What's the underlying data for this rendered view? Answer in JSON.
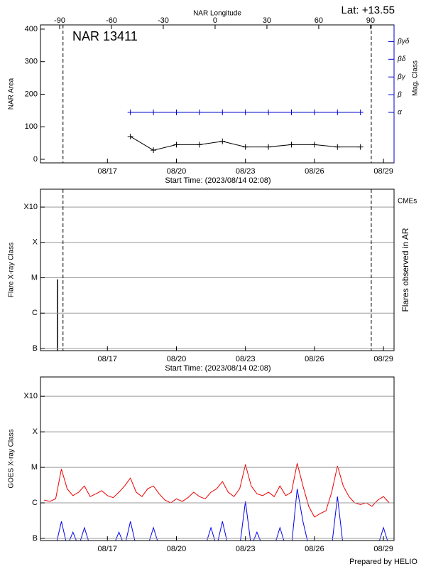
{
  "chart_data": [
    {
      "type": "line",
      "title": "NAR 13411",
      "latitude": "Lat: +13.55",
      "x2label": "NAR Longitude",
      "ylabel": "NAR Area",
      "y2label": "Mag. Class",
      "xlabel": "Start Time: (2023/08/14 02:08)",
      "xlim": [
        14.09,
        29.46
      ],
      "xticks": [
        {
          "value": 17,
          "label": "08/17"
        },
        {
          "value": 20,
          "label": "08/20"
        },
        {
          "value": 23,
          "label": "08/23"
        },
        {
          "value": 26,
          "label": "08/26"
        },
        {
          "value": 29,
          "label": "08/29"
        }
      ],
      "x2lim": [
        -101.1,
        103.6
      ],
      "x2ticks": [
        -90,
        -60,
        -30,
        0,
        30,
        60,
        90
      ],
      "ylim": [
        -11,
        413
      ],
      "yticks": [
        0,
        100,
        200,
        300,
        400
      ],
      "y2lim": [
        -0.85,
        6.94
      ],
      "y2ticks": [
        {
          "value": 2,
          "label": "α"
        },
        {
          "value": 3,
          "label": "β"
        },
        {
          "value": 4,
          "label": "βγ"
        },
        {
          "value": 5,
          "label": "βδ"
        },
        {
          "value": 6,
          "label": "βγδ"
        }
      ],
      "vlines": [
        15.07,
        28.47
      ],
      "x": [
        18,
        19,
        20,
        21,
        22,
        23,
        24,
        25,
        26,
        27,
        28
      ],
      "series": [
        {
          "color": "#000000",
          "values": [
            70,
            28,
            45,
            45,
            55,
            38,
            38,
            45,
            45,
            38,
            38
          ]
        },
        {
          "color": "#0000cc",
          "axis": "y2",
          "values": [
            2,
            2,
            2,
            2,
            2,
            2,
            2,
            2,
            2,
            2,
            2
          ]
        }
      ]
    },
    {
      "type": "stem",
      "ylabel": "Flare X-ray Class",
      "y2label": "Flares observed in AR",
      "legend_label": "CMEs",
      "legend_color": "#dd0000",
      "xlabel": "Start Time: (2023/08/14 02:08)",
      "log_scale": true,
      "grid": true,
      "xlim": [
        14.09,
        29.46
      ],
      "xticks": [
        {
          "value": 17,
          "label": "08/17"
        },
        {
          "value": 20,
          "label": "08/20"
        },
        {
          "value": 23,
          "label": "08/23"
        },
        {
          "value": 26,
          "label": "08/26"
        },
        {
          "value": 29,
          "label": "08/29"
        }
      ],
      "ylim": [
        8.7e-08,
        0.0032
      ],
      "yticks": [
        {
          "value": 1e-07,
          "label": "B"
        },
        {
          "value": 1e-06,
          "label": "C"
        },
        {
          "value": 1e-05,
          "label": "M"
        },
        {
          "value": 0.0001,
          "label": "X"
        },
        {
          "value": 0.001,
          "label": "X10"
        }
      ],
      "vlines": [
        15.07,
        28.47
      ],
      "x": [
        14.83
      ],
      "values": [
        9e-06
      ],
      "color": "#000000"
    },
    {
      "type": "line",
      "ylabel": "GOES X-ray Class",
      "log_scale": true,
      "grid": true,
      "xlim": [
        14.09,
        29.46
      ],
      "xticks": [
        {
          "value": 17,
          "label": "08/17"
        },
        {
          "value": 20,
          "label": "08/20"
        },
        {
          "value": 23,
          "label": "08/23"
        },
        {
          "value": 26,
          "label": "08/26"
        },
        {
          "value": 29,
          "label": "08/29"
        }
      ],
      "ylim": [
        8.7e-08,
        0.0035
      ],
      "yticks": [
        {
          "value": 1e-07,
          "label": "B"
        },
        {
          "value": 1e-06,
          "label": "C"
        },
        {
          "value": 1e-05,
          "label": "M"
        },
        {
          "value": 0.0001,
          "label": "X"
        },
        {
          "value": 0.001,
          "label": "X10"
        }
      ],
      "x": [
        14.25,
        14.5,
        14.75,
        15,
        15.25,
        15.5,
        15.75,
        16,
        16.25,
        16.5,
        16.75,
        17,
        17.25,
        17.5,
        17.75,
        18,
        18.25,
        18.5,
        18.75,
        19,
        19.25,
        19.5,
        19.75,
        20,
        20.25,
        20.5,
        20.75,
        21,
        21.25,
        21.5,
        21.75,
        22,
        22.25,
        22.5,
        22.75,
        23,
        23.25,
        23.5,
        23.75,
        24,
        24.25,
        24.5,
        24.75,
        25,
        25.25,
        25.5,
        25.75,
        26,
        26.25,
        26.5,
        26.75,
        27,
        27.25,
        27.5,
        27.75,
        28,
        28.25,
        28.5,
        28.75,
        29,
        29.25
      ],
      "series": [
        {
          "color": "#ee0000",
          "values": [
            1.2e-06,
            1.1e-06,
            1.3e-06,
            9e-06,
            2.5e-06,
            1.6e-06,
            2e-06,
            3e-06,
            1.5e-06,
            1.8e-06,
            2.2e-06,
            1.6e-06,
            1.4e-06,
            2e-06,
            3e-06,
            5e-06,
            2e-06,
            1.5e-06,
            2.5e-06,
            3e-06,
            1.8e-06,
            1.2e-06,
            1e-06,
            1.3e-06,
            1.1e-06,
            1.4e-06,
            2e-06,
            1.5e-06,
            1.3e-06,
            2e-06,
            2.5e-06,
            4e-06,
            2e-06,
            1.5e-06,
            2.5e-06,
            1.2e-05,
            3e-06,
            1.8e-06,
            1.6e-06,
            2e-06,
            1.5e-06,
            3e-06,
            1.6e-06,
            2e-06,
            1.3e-05,
            3e-06,
            8e-07,
            4e-07,
            5e-07,
            6e-07,
            2e-06,
            1.1e-05,
            3e-06,
            1.5e-06,
            1e-06,
            9e-07,
            1e-06,
            8e-07,
            1.2e-06,
            1.5e-06,
            1e-06
          ]
        },
        {
          "color": "#0000ee",
          "values": [
            6e-08,
            6e-08,
            6e-08,
            3e-07,
            6e-08,
            1.5e-07,
            6e-08,
            2e-07,
            6e-08,
            6e-08,
            6e-08,
            6e-08,
            6e-08,
            1.5e-07,
            6e-08,
            3e-07,
            6e-08,
            6e-08,
            6e-08,
            2e-07,
            6e-08,
            6e-08,
            6e-08,
            6e-08,
            6e-08,
            6e-08,
            6e-08,
            6e-08,
            6e-08,
            2e-07,
            6e-08,
            3e-07,
            6e-08,
            6e-08,
            6e-08,
            1.1e-06,
            6e-08,
            1.5e-07,
            6e-08,
            6e-08,
            6e-08,
            2e-07,
            6e-08,
            6e-08,
            2.5e-06,
            3e-07,
            6e-08,
            6e-08,
            6e-08,
            6e-08,
            6e-08,
            1.5e-06,
            6e-08,
            6e-08,
            6e-08,
            6e-08,
            6e-08,
            6e-08,
            6e-08,
            2e-07,
            6e-08
          ]
        }
      ]
    }
  ],
  "footer": "Prepared by HELIO"
}
